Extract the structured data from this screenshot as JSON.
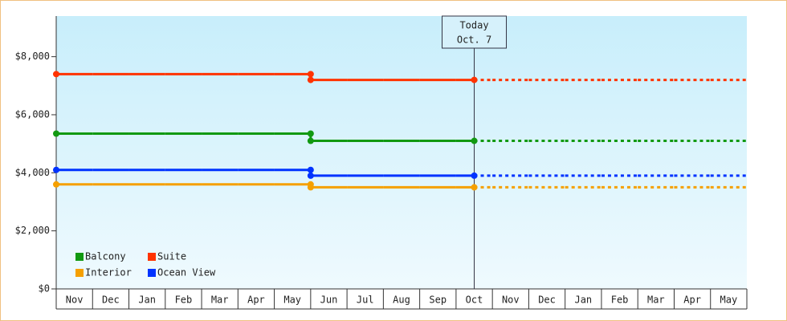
{
  "chart_data": {
    "type": "step",
    "categories": [
      "Nov",
      "Dec",
      "Jan",
      "Feb",
      "Mar",
      "Apr",
      "May",
      "Jun",
      "Jul",
      "Aug",
      "Sep",
      "Oct",
      "Nov",
      "Dec",
      "Jan",
      "Feb",
      "Mar",
      "Apr",
      "May"
    ],
    "series": [
      {
        "name": "Balcony",
        "color": "#119911",
        "values": [
          5350,
          5350,
          5350,
          5350,
          5350,
          5350,
          5350,
          5100,
          5100,
          5100,
          5100,
          5100,
          5100,
          5100,
          5100,
          5100,
          5100,
          5100,
          5100
        ]
      },
      {
        "name": "Suite",
        "color": "#ff3300",
        "values": [
          7400,
          7400,
          7400,
          7400,
          7400,
          7400,
          7400,
          7200,
          7200,
          7200,
          7200,
          7200,
          7200,
          7200,
          7200,
          7200,
          7200,
          7200,
          7200
        ]
      },
      {
        "name": "Interior",
        "color": "#f5a000",
        "values": [
          3600,
          3600,
          3600,
          3600,
          3600,
          3600,
          3600,
          3500,
          3500,
          3500,
          3500,
          3500,
          3500,
          3500,
          3500,
          3500,
          3500,
          3500,
          3500
        ]
      },
      {
        "name": "Ocean View",
        "color": "#0033ff",
        "values": [
          4100,
          4100,
          4100,
          4100,
          4100,
          4100,
          4100,
          3900,
          3900,
          3900,
          3900,
          3900,
          3900,
          3900,
          3900,
          3900,
          3900,
          3900,
          3900
        ]
      }
    ],
    "annotation": [
      "Today",
      "Oct. 7"
    ],
    "ylim": [
      0,
      9400
    ],
    "yticks": [
      {
        "value": 0,
        "label": "$0"
      },
      {
        "value": 2000,
        "label": "$2,000"
      },
      {
        "value": 4000,
        "label": "$4,000"
      },
      {
        "value": 6000,
        "label": "$6,000"
      },
      {
        "value": 8000,
        "label": "$8,000"
      }
    ],
    "legend": "lower left"
  }
}
